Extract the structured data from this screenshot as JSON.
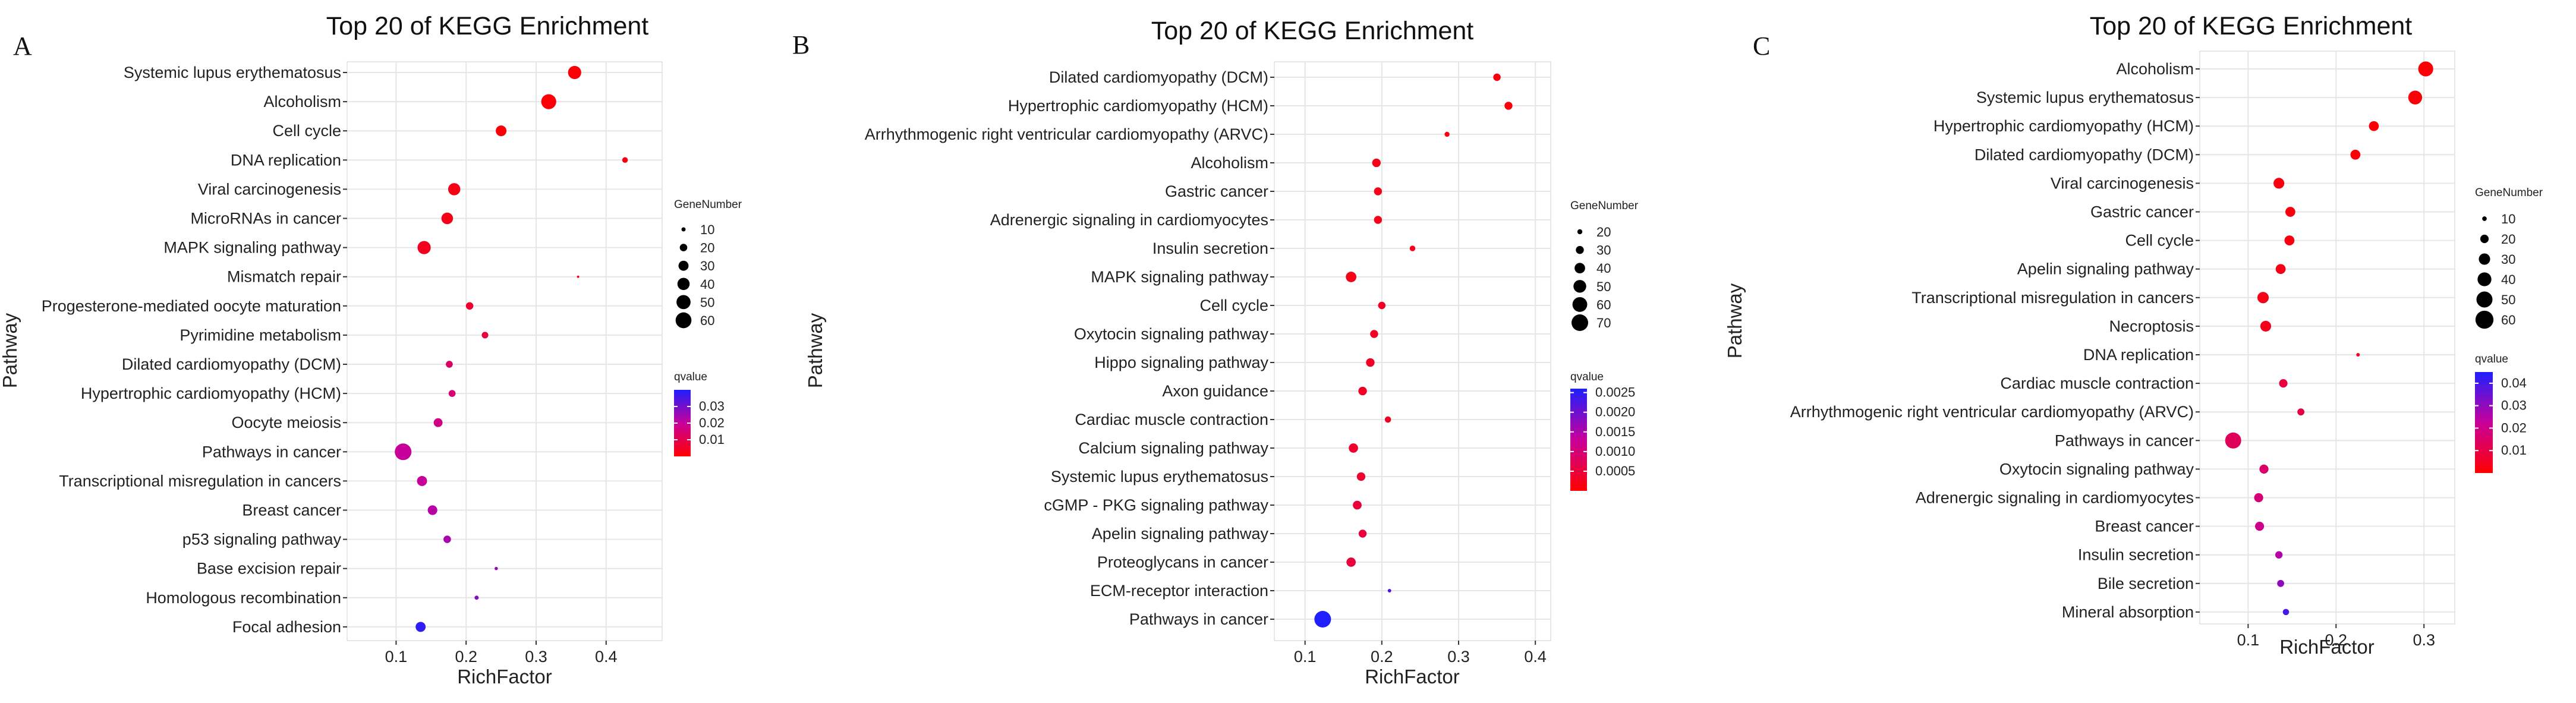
{
  "figure": "Three KEGG enrichment bubble plots",
  "size_legend_title": "GeneNumber",
  "color_legend_title": "qvalue",
  "colors": {
    "low_q": "#ff0000",
    "high_q": "#1f1fff",
    "grid": "#e6e6e6"
  },
  "chart_data": [
    {
      "type": "scatter",
      "panel": "A",
      "title": "Top 20 of KEGG Enrichment",
      "xlabel": "RichFactor",
      "ylabel": "Pathway",
      "xlim": [
        0.03,
        0.48
      ],
      "xticks": [
        0.1,
        0.2,
        0.3,
        0.4
      ],
      "xtick_labels": [
        "0.1",
        "0.2",
        "0.3",
        "0.4"
      ],
      "size_legend": [
        10,
        20,
        30,
        40,
        50,
        60
      ],
      "color_range": [
        0.0,
        0.04
      ],
      "color_ticks": [
        0.01,
        0.02,
        0.03
      ],
      "points": [
        {
          "pathway": "Systemic lupus erythematosus",
          "richfactor": 0.355,
          "genes": 45,
          "qvalue": 0.001
        },
        {
          "pathway": "Alcoholism",
          "richfactor": 0.318,
          "genes": 55,
          "qvalue": 0.001
        },
        {
          "pathway": "Cell cycle",
          "richfactor": 0.25,
          "genes": 33,
          "qvalue": 0.001
        },
        {
          "pathway": "DNA replication",
          "richfactor": 0.427,
          "genes": 14,
          "qvalue": 0.002
        },
        {
          "pathway": "Viral carcinogenesis",
          "richfactor": 0.183,
          "genes": 40,
          "qvalue": 0.003
        },
        {
          "pathway": "MicroRNAs in cancer",
          "richfactor": 0.173,
          "genes": 37,
          "qvalue": 0.003
        },
        {
          "pathway": "MAPK signaling pathway",
          "richfactor": 0.14,
          "genes": 45,
          "qvalue": 0.004
        },
        {
          "pathway": "Mismatch repair",
          "richfactor": 0.36,
          "genes": 6,
          "qvalue": 0.005
        },
        {
          "pathway": "Progesterone-mediated oocyte maturation",
          "richfactor": 0.205,
          "genes": 20,
          "qvalue": 0.006
        },
        {
          "pathway": "Pyrimidine metabolism",
          "richfactor": 0.227,
          "genes": 17,
          "qvalue": 0.008
        },
        {
          "pathway": "Dilated cardiomyopathy (DCM)",
          "richfactor": 0.176,
          "genes": 18,
          "qvalue": 0.013
        },
        {
          "pathway": "Hypertrophic cardiomyopathy (HCM)",
          "richfactor": 0.18,
          "genes": 18,
          "qvalue": 0.015
        },
        {
          "pathway": "Oocyte meiosis",
          "richfactor": 0.16,
          "genes": 25,
          "qvalue": 0.017
        },
        {
          "pathway": "Pathways in cancer",
          "richfactor": 0.11,
          "genes": 65,
          "qvalue": 0.02
        },
        {
          "pathway": "Transcriptional misregulation in cancers",
          "richfactor": 0.137,
          "genes": 30,
          "qvalue": 0.02
        },
        {
          "pathway": "Breast cancer",
          "richfactor": 0.152,
          "genes": 28,
          "qvalue": 0.022
        },
        {
          "pathway": "p53 signaling pathway",
          "richfactor": 0.173,
          "genes": 20,
          "qvalue": 0.024
        },
        {
          "pathway": "Base excision repair",
          "richfactor": 0.243,
          "genes": 8,
          "qvalue": 0.026
        },
        {
          "pathway": "Homologous recombination",
          "richfactor": 0.215,
          "genes": 10,
          "qvalue": 0.028
        },
        {
          "pathway": "Focal adhesion",
          "richfactor": 0.135,
          "genes": 30,
          "qvalue": 0.038
        }
      ]
    },
    {
      "type": "scatter",
      "panel": "B",
      "title": "Top 20 of KEGG Enrichment",
      "xlabel": "RichFactor",
      "ylabel": "Pathway",
      "xlim": [
        0.06,
        0.42
      ],
      "xticks": [
        0.1,
        0.2,
        0.3,
        0.4
      ],
      "xtick_labels": [
        "0.1",
        "0.2",
        "0.3",
        "0.4"
      ],
      "size_legend": [
        20,
        30,
        40,
        50,
        60,
        70
      ],
      "color_range": [
        0.0,
        0.0026
      ],
      "color_ticks": [
        0.0005,
        0.001,
        0.0015,
        0.002,
        0.0025
      ],
      "color_tick_labels": [
        "0.0005",
        "0.0010",
        "0.0015",
        "0.0020",
        "0.0025"
      ],
      "points": [
        {
          "pathway": "Dilated cardiomyopathy (DCM)",
          "richfactor": 0.35,
          "genes": 28,
          "qvalue": 0.0001
        },
        {
          "pathway": "Hypertrophic cardiomyopathy (HCM)",
          "richfactor": 0.365,
          "genes": 30,
          "qvalue": 0.0001
        },
        {
          "pathway": "Arrhythmogenic right ventricular cardiomyopathy (ARVC)",
          "richfactor": 0.285,
          "genes": 20,
          "qvalue": 0.0001
        },
        {
          "pathway": "Alcoholism",
          "richfactor": 0.193,
          "genes": 32,
          "qvalue": 0.0002
        },
        {
          "pathway": "Gastric cancer",
          "richfactor": 0.195,
          "genes": 30,
          "qvalue": 0.0002
        },
        {
          "pathway": "Adrenergic signaling in cardiomyocytes",
          "richfactor": 0.195,
          "genes": 30,
          "qvalue": 0.0002
        },
        {
          "pathway": "Insulin secretion",
          "richfactor": 0.24,
          "genes": 22,
          "qvalue": 0.0002
        },
        {
          "pathway": "MAPK signaling pathway",
          "richfactor": 0.16,
          "genes": 40,
          "qvalue": 0.0002
        },
        {
          "pathway": "Cell cycle",
          "richfactor": 0.2,
          "genes": 28,
          "qvalue": 0.0003
        },
        {
          "pathway": "Oxytocin signaling pathway",
          "richfactor": 0.19,
          "genes": 30,
          "qvalue": 0.0003
        },
        {
          "pathway": "Hippo signaling pathway",
          "richfactor": 0.185,
          "genes": 32,
          "qvalue": 0.0003
        },
        {
          "pathway": "Axon guidance",
          "richfactor": 0.175,
          "genes": 32,
          "qvalue": 0.0003
        },
        {
          "pathway": "Cardiac muscle contraction",
          "richfactor": 0.208,
          "genes": 24,
          "qvalue": 0.0003
        },
        {
          "pathway": "Calcium signaling pathway",
          "richfactor": 0.163,
          "genes": 35,
          "qvalue": 0.0004
        },
        {
          "pathway": "Systemic lupus erythematosus",
          "richfactor": 0.173,
          "genes": 32,
          "qvalue": 0.0004
        },
        {
          "pathway": "cGMP - PKG signaling pathway",
          "richfactor": 0.168,
          "genes": 33,
          "qvalue": 0.0005
        },
        {
          "pathway": "Apelin signaling pathway",
          "richfactor": 0.175,
          "genes": 30,
          "qvalue": 0.0005
        },
        {
          "pathway": "Proteoglycans in cancer",
          "richfactor": 0.16,
          "genes": 35,
          "qvalue": 0.0005
        },
        {
          "pathway": "ECM-receptor interaction",
          "richfactor": 0.21,
          "genes": 16,
          "qvalue": 0.0022
        },
        {
          "pathway": "Pathways in cancer",
          "richfactor": 0.123,
          "genes": 70,
          "qvalue": 0.0026
        }
      ]
    },
    {
      "type": "scatter",
      "panel": "C",
      "title": "Top 20 of KEGG Enrichment",
      "xlabel": "RichFactor",
      "ylabel": "Pathway",
      "xlim": [
        0.045,
        0.335
      ],
      "xticks": [
        0.1,
        0.2,
        0.3
      ],
      "xtick_labels": [
        "0.1",
        "0.2",
        "0.3"
      ],
      "size_legend": [
        10,
        20,
        30,
        40,
        50,
        60
      ],
      "color_range": [
        0.0,
        0.045
      ],
      "color_ticks": [
        0.01,
        0.02,
        0.03,
        0.04
      ],
      "points": [
        {
          "pathway": "Alcoholism",
          "richfactor": 0.302,
          "genes": 45,
          "qvalue": 0.001
        },
        {
          "pathway": "Systemic lupus erythematosus",
          "richfactor": 0.29,
          "genes": 40,
          "qvalue": 0.001
        },
        {
          "pathway": "Hypertrophic cardiomyopathy (HCM)",
          "richfactor": 0.243,
          "genes": 25,
          "qvalue": 0.001
        },
        {
          "pathway": "Dilated cardiomyopathy (DCM)",
          "richfactor": 0.222,
          "genes": 25,
          "qvalue": 0.001
        },
        {
          "pathway": "Viral carcinogenesis",
          "richfactor": 0.135,
          "genes": 28,
          "qvalue": 0.002
        },
        {
          "pathway": "Gastric cancer",
          "richfactor": 0.148,
          "genes": 25,
          "qvalue": 0.002
        },
        {
          "pathway": "Cell cycle",
          "richfactor": 0.147,
          "genes": 25,
          "qvalue": 0.002
        },
        {
          "pathway": "Apelin signaling pathway",
          "richfactor": 0.137,
          "genes": 25,
          "qvalue": 0.003
        },
        {
          "pathway": "Transcriptional misregulation in cancers",
          "richfactor": 0.117,
          "genes": 30,
          "qvalue": 0.003
        },
        {
          "pathway": "Necroptosis",
          "richfactor": 0.12,
          "genes": 28,
          "qvalue": 0.004
        },
        {
          "pathway": "DNA replication",
          "richfactor": 0.225,
          "genes": 8,
          "qvalue": 0.005
        },
        {
          "pathway": "Cardiac muscle contraction",
          "richfactor": 0.14,
          "genes": 20,
          "qvalue": 0.009
        },
        {
          "pathway": "Arrhythmogenic right ventricular cardiomyopathy (ARVC)",
          "richfactor": 0.16,
          "genes": 16,
          "qvalue": 0.01
        },
        {
          "pathway": "Pathways in cancer",
          "richfactor": 0.083,
          "genes": 50,
          "qvalue": 0.013
        },
        {
          "pathway": "Oxytocin signaling pathway",
          "richfactor": 0.118,
          "genes": 22,
          "qvalue": 0.015
        },
        {
          "pathway": "Adrenergic signaling in cardiomyocytes",
          "richfactor": 0.112,
          "genes": 22,
          "qvalue": 0.017
        },
        {
          "pathway": "Breast cancer",
          "richfactor": 0.113,
          "genes": 22,
          "qvalue": 0.02
        },
        {
          "pathway": "Insulin secretion",
          "richfactor": 0.135,
          "genes": 17,
          "qvalue": 0.025
        },
        {
          "pathway": "Bile secretion",
          "richfactor": 0.137,
          "genes": 16,
          "qvalue": 0.03
        },
        {
          "pathway": "Mineral absorption",
          "richfactor": 0.143,
          "genes": 14,
          "qvalue": 0.04
        }
      ]
    }
  ]
}
